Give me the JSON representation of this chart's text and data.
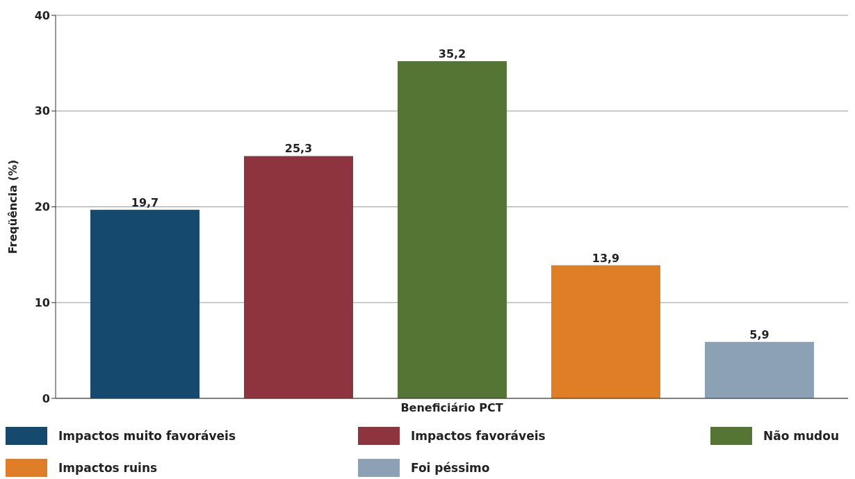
{
  "chart_data": {
    "type": "bar",
    "categories": [
      "Beneficiário PCT"
    ],
    "ylabel": "Freqüência (%)",
    "ylim": [
      0,
      40
    ],
    "yticks": [
      0,
      10,
      20,
      30,
      40
    ],
    "grid": "y",
    "legend": "bottom",
    "series": [
      {
        "name": "Impactos muito favoráveis",
        "color": "#154a6e",
        "values": [
          19.7
        ],
        "value_labels": [
          "19,7"
        ]
      },
      {
        "name": "Impactos favoráveis",
        "color": "#8e343e",
        "values": [
          25.3
        ],
        "value_labels": [
          "25,3"
        ]
      },
      {
        "name": "Não mudou",
        "color": "#557535",
        "values": [
          35.2
        ],
        "value_labels": [
          "35,2"
        ]
      },
      {
        "name": "Impactos ruins",
        "color": "#e07e28",
        "values": [
          13.9
        ],
        "value_labels": [
          "13,9"
        ]
      },
      {
        "name": "Foi péssimo",
        "color": "#8da1b5",
        "values": [
          5.9
        ],
        "value_labels": [
          "5,9"
        ]
      }
    ]
  }
}
